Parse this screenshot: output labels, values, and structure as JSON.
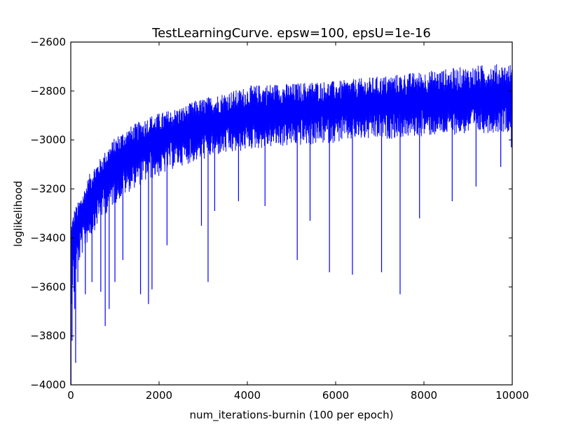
{
  "chart_data": {
    "type": "line",
    "title": "TestLearningCurve. epsw=100, epsU=1e-16",
    "xlabel": "num_iterations-burnin (100 per epoch)",
    "ylabel": "loglikelihood",
    "xlim": [
      0,
      10000
    ],
    "ylim": [
      -4000,
      -2600
    ],
    "xticks": [
      0,
      2000,
      4000,
      6000,
      8000,
      10000
    ],
    "xtick_labels": [
      "0",
      "2000",
      "4000",
      "6000",
      "8000",
      "10000"
    ],
    "yticks": [
      -4000,
      -3800,
      -3600,
      -3400,
      -3200,
      -3000,
      -2800,
      -2600
    ],
    "ytick_labels": [
      "−4000",
      "−3800",
      "−3600",
      "−3400",
      "−3200",
      "−3000",
      "−2800",
      "−2600"
    ],
    "grid": false,
    "legend": "none",
    "series": [
      {
        "color": "#0000ff",
        "x": [
          0,
          10,
          25,
          50,
          75,
          100,
          150,
          200,
          250,
          300,
          400,
          500,
          600,
          700,
          800,
          1000,
          1200,
          1400,
          1600,
          1800,
          2000,
          2200,
          2400,
          2600,
          2800,
          3000,
          3200,
          3400,
          3600,
          3800,
          4000,
          4500,
          5000,
          5500,
          6000,
          6500,
          7000,
          7500,
          8000,
          8500,
          9000,
          9500,
          10000
        ],
        "upper": [
          -3320,
          -3330,
          -3310,
          -3300,
          -3280,
          -3270,
          -3260,
          -3240,
          -3220,
          -3200,
          -3150,
          -3110,
          -3090,
          -3070,
          -3040,
          -2990,
          -2960,
          -2940,
          -2920,
          -2900,
          -2890,
          -2880,
          -2870,
          -2860,
          -2840,
          -2830,
          -2820,
          -2810,
          -2800,
          -2795,
          -2780,
          -2770,
          -2770,
          -2760,
          -2760,
          -2750,
          -2740,
          -2730,
          -2720,
          -2710,
          -2700,
          -2690,
          -2690
        ],
        "mid": [
          -3500,
          -3480,
          -3460,
          -3440,
          -3420,
          -3400,
          -3370,
          -3340,
          -3320,
          -3300,
          -3260,
          -3220,
          -3190,
          -3160,
          -3140,
          -3100,
          -3070,
          -3050,
          -3030,
          -3010,
          -3000,
          -2985,
          -2970,
          -2960,
          -2950,
          -2940,
          -2930,
          -2920,
          -2915,
          -2910,
          -2900,
          -2890,
          -2880,
          -2875,
          -2870,
          -2860,
          -2855,
          -2850,
          -2845,
          -2840,
          -2835,
          -2830,
          -2825
        ],
        "lower": [
          -3700,
          -3680,
          -3640,
          -3600,
          -3580,
          -3560,
          -3520,
          -3500,
          -3470,
          -3450,
          -3410,
          -3380,
          -3350,
          -3320,
          -3300,
          -3260,
          -3230,
          -3200,
          -3180,
          -3160,
          -3150,
          -3130,
          -3110,
          -3100,
          -3090,
          -3080,
          -3070,
          -3060,
          -3060,
          -3050,
          -3040,
          -3030,
          -3025,
          -3020,
          -3010,
          -3000,
          -3000,
          -2990,
          -2985,
          -2980,
          -2975,
          -2970,
          -2965
        ],
        "spikes": [
          {
            "x": 5,
            "y": -4000
          },
          {
            "x": 12,
            "y": -3620
          },
          {
            "x": 30,
            "y": -3820
          },
          {
            "x": 45,
            "y": -3500
          },
          {
            "x": 75,
            "y": -3620
          },
          {
            "x": 90,
            "y": -3690
          },
          {
            "x": 110,
            "y": -3910
          },
          {
            "x": 160,
            "y": -3580
          },
          {
            "x": 330,
            "y": -3630
          },
          {
            "x": 480,
            "y": -3580
          },
          {
            "x": 680,
            "y": -3620
          },
          {
            "x": 780,
            "y": -3760
          },
          {
            "x": 870,
            "y": -3690
          },
          {
            "x": 1000,
            "y": -3580
          },
          {
            "x": 1180,
            "y": -3490
          },
          {
            "x": 1580,
            "y": -3630
          },
          {
            "x": 1760,
            "y": -3670
          },
          {
            "x": 1840,
            "y": -3610
          },
          {
            "x": 2180,
            "y": -3430
          },
          {
            "x": 2960,
            "y": -3350
          },
          {
            "x": 3110,
            "y": -3580
          },
          {
            "x": 3260,
            "y": -3290
          },
          {
            "x": 3800,
            "y": -3250
          },
          {
            "x": 4400,
            "y": -3270
          },
          {
            "x": 5130,
            "y": -3490
          },
          {
            "x": 5420,
            "y": -3330
          },
          {
            "x": 5860,
            "y": -3540
          },
          {
            "x": 6380,
            "y": -3550
          },
          {
            "x": 7040,
            "y": -3540
          },
          {
            "x": 7460,
            "y": -3630
          },
          {
            "x": 7900,
            "y": -3320
          },
          {
            "x": 8640,
            "y": -3250
          },
          {
            "x": 9180,
            "y": -3190
          },
          {
            "x": 9740,
            "y": -3110
          },
          {
            "x": 9980,
            "y": -3030
          }
        ]
      }
    ]
  }
}
